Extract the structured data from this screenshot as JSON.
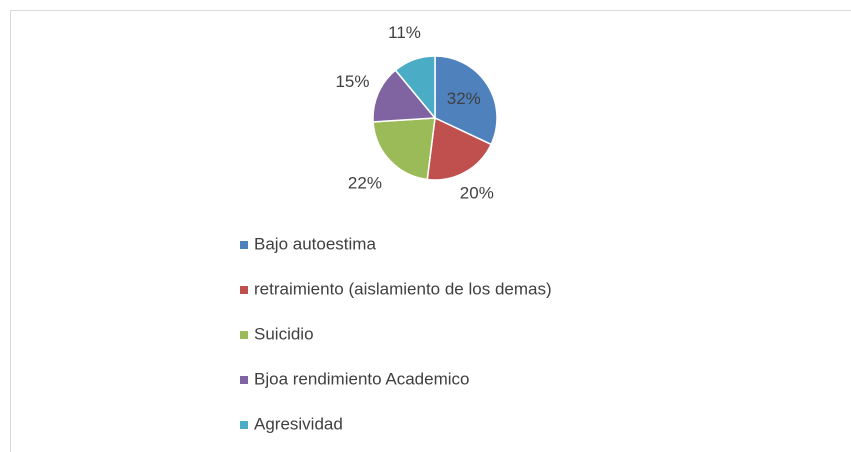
{
  "chart_data": {
    "type": "pie",
    "categories": [
      "Bajo autoestima",
      "retraimiento (aislamiento de los demas)",
      "Suicidio",
      "Bjoa rendimiento Academico",
      "Agresividad"
    ],
    "values": [
      32,
      20,
      22,
      15,
      11
    ],
    "value_labels": [
      "32%",
      "20%",
      "22%",
      "15%",
      "11%"
    ],
    "colors": [
      "#4f81bd",
      "#c0504d",
      "#9bbb59",
      "#8064a2",
      "#4bacc6"
    ],
    "legend": "bottom"
  }
}
